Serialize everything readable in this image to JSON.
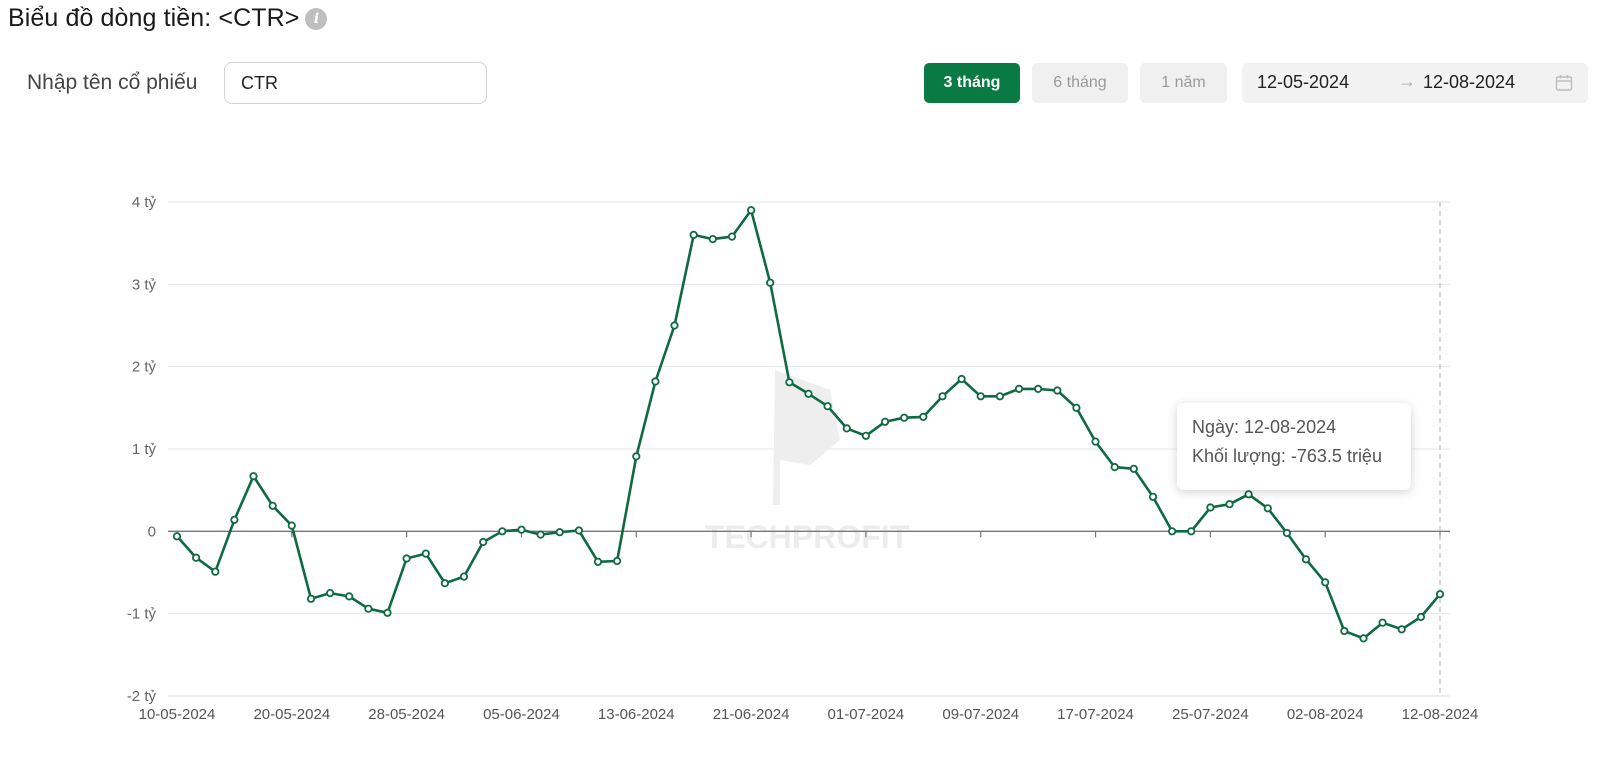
{
  "header": {
    "title": "Biểu đồ dòng tiền: <CTR>",
    "info_icon": "info-icon"
  },
  "controls": {
    "stock_label": "Nhập tên cổ phiếu",
    "stock_value": "CTR",
    "ranges": [
      {
        "label": "3 tháng",
        "active": true
      },
      {
        "label": "6 tháng",
        "active": false
      },
      {
        "label": "1 năm",
        "active": false
      }
    ],
    "date_from": "12-05-2024",
    "date_arrow": "→",
    "date_to": "12-08-2024",
    "calendar_icon": "calendar-icon"
  },
  "colors": {
    "accent": "#0a7a45",
    "line": "#0f6a42"
  },
  "watermark": "TECHPROFIT",
  "tooltip": {
    "date_label": "Ngày: 12-08-2024",
    "volume_label": "Khối lượng: -763.5 triệu"
  },
  "chart_data": {
    "type": "line",
    "ylabel": "",
    "xlabel": "",
    "ylim": [
      -2,
      4
    ],
    "y_ticks": [
      4,
      3,
      2,
      1,
      0,
      -1,
      -2
    ],
    "y_tick_labels": [
      "4 tỷ",
      "3 tỷ",
      "2 tỷ",
      "1 tỷ",
      "0",
      "-1 tỷ",
      "-2 tỷ"
    ],
    "x_tick_labels": [
      "10-05-2024",
      "20-05-2024",
      "28-05-2024",
      "05-06-2024",
      "13-06-2024",
      "21-06-2024",
      "01-07-2024",
      "09-07-2024",
      "17-07-2024",
      "25-07-2024",
      "02-08-2024",
      "12-08-2024"
    ],
    "x_tick_indices": [
      0,
      6,
      12,
      18,
      24,
      30,
      36,
      42,
      48,
      54,
      60,
      66
    ],
    "grid": true,
    "legend": "none",
    "series": [
      {
        "values": [
          -0.06,
          -0.32,
          -0.49,
          0.14,
          0.67,
          0.31,
          0.07,
          -0.82,
          -0.75,
          -0.79,
          -0.94,
          -0.99,
          -0.33,
          -0.27,
          -0.63,
          -0.55,
          -0.13,
          0.0,
          0.02,
          -0.04,
          -0.01,
          0.01,
          -0.37,
          -0.36,
          0.91,
          1.82,
          2.5,
          3.6,
          3.55,
          3.58,
          3.9,
          3.02,
          1.81,
          1.67,
          1.52,
          1.25,
          1.16,
          1.33,
          1.38,
          1.39,
          1.64,
          1.85,
          1.64,
          1.64,
          1.73,
          1.73,
          1.71,
          1.5,
          1.09,
          0.78,
          0.76,
          0.42,
          0.0,
          0.0,
          0.29,
          0.33,
          0.45,
          0.28,
          -0.02,
          -0.34,
          -0.62,
          -1.21,
          -1.3,
          -1.11,
          -1.19,
          -1.04,
          -0.7635
        ]
      }
    ]
  }
}
